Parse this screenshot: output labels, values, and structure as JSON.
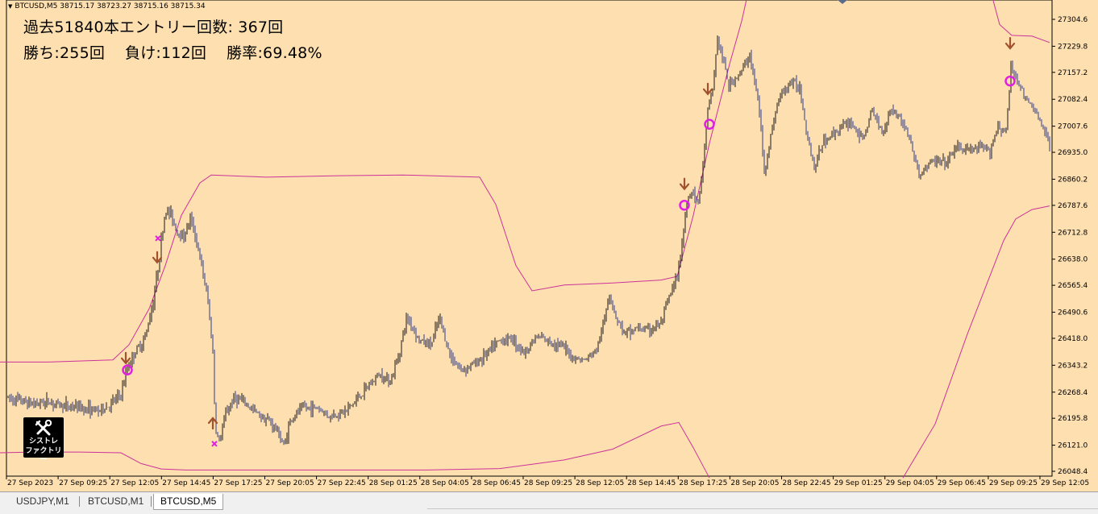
{
  "header": {
    "symbol_line": "BTCUSD,M5  38715.17 38723.27 38715.16 38715.34"
  },
  "stats": {
    "line1": "過去51840本エントリー回数: 367回",
    "line2": "勝ち:255回    負け:112回    勝率:69.48%"
  },
  "logo": {
    "line1": "シストレ",
    "line2": "ファクトリー"
  },
  "tabs": [
    {
      "label": "USDJPY,M1",
      "active": false
    },
    {
      "label": "BTCUSD,M1",
      "active": false
    },
    {
      "label": "BTCUSD,M5",
      "active": true
    }
  ],
  "chart_data": {
    "type": "candlestick",
    "symbol": "BTCUSD",
    "timeframe": "M5",
    "colors": {
      "background": "#fedfb0",
      "candle_up": "#1a1a1a",
      "candle_down": "#2d3d8a",
      "band": "#cc3399",
      "marker_circle": "#e020e0",
      "marker_cross": "#e020e0",
      "arrow": "#a0522d"
    },
    "y_ticks": [
      26048.4,
      26121.0,
      26195.8,
      26268.4,
      26343.2,
      26418.0,
      26490.6,
      26565.4,
      26638.0,
      26712.8,
      26787.6,
      26860.2,
      26935.0,
      27007.6,
      27082.4,
      27157.2,
      27229.8,
      27304.6
    ],
    "x_labels": [
      "27 Sep 2023",
      "27 Sep 09:25",
      "27 Sep 12:05",
      "27 Sep 14:45",
      "27 Sep 17:25",
      "27 Sep 20:05",
      "27 Sep 22:45",
      "28 Sep 01:25",
      "28 Sep 04:05",
      "28 Sep 06:45",
      "28 Sep 09:25",
      "28 Sep 12:05",
      "28 Sep 14:45",
      "28 Sep 17:25",
      "28 Sep 20:05",
      "28 Sep 22:45",
      "29 Sep 01:25",
      "29 Sep 04:05",
      "29 Sep 06:45",
      "29 Sep 09:25",
      "29 Sep 12:05"
    ],
    "y_range": [
      26048.4,
      27304.6
    ],
    "price_path": [
      [
        0,
        26258
      ],
      [
        20,
        26248
      ],
      [
        40,
        26236
      ],
      [
        60,
        26242
      ],
      [
        80,
        26230
      ],
      [
        100,
        26226
      ],
      [
        120,
        26216
      ],
      [
        135,
        26230
      ],
      [
        150,
        26262
      ],
      [
        158,
        26336
      ],
      [
        165,
        26370
      ],
      [
        180,
        26420
      ],
      [
        190,
        26520
      ],
      [
        197,
        26630
      ],
      [
        205,
        26772
      ],
      [
        212,
        26764
      ],
      [
        220,
        26712
      ],
      [
        228,
        26700
      ],
      [
        236,
        26752
      ],
      [
        242,
        26706
      ],
      [
        250,
        26620
      ],
      [
        258,
        26520
      ],
      [
        264,
        26380
      ],
      [
        267,
        26168
      ],
      [
        272,
        26130
      ],
      [
        280,
        26208
      ],
      [
        290,
        26252
      ],
      [
        300,
        26244
      ],
      [
        320,
        26208
      ],
      [
        335,
        26186
      ],
      [
        345,
        26158
      ],
      [
        352,
        26118
      ],
      [
        360,
        26188
      ],
      [
        375,
        26226
      ],
      [
        395,
        26224
      ],
      [
        410,
        26200
      ],
      [
        430,
        26218
      ],
      [
        450,
        26266
      ],
      [
        470,
        26318
      ],
      [
        485,
        26300
      ],
      [
        495,
        26378
      ],
      [
        505,
        26478
      ],
      [
        520,
        26412
      ],
      [
        535,
        26400
      ],
      [
        545,
        26476
      ],
      [
        558,
        26370
      ],
      [
        572,
        26330
      ],
      [
        590,
        26350
      ],
      [
        605,
        26378
      ],
      [
        620,
        26412
      ],
      [
        635,
        26418
      ],
      [
        650,
        26378
      ],
      [
        665,
        26422
      ],
      [
        680,
        26410
      ],
      [
        695,
        26400
      ],
      [
        710,
        26366
      ],
      [
        725,
        26356
      ],
      [
        740,
        26386
      ],
      [
        750,
        26470
      ],
      [
        755,
        26548
      ],
      [
        765,
        26472
      ],
      [
        775,
        26430
      ],
      [
        790,
        26446
      ],
      [
        805,
        26440
      ],
      [
        820,
        26460
      ],
      [
        830,
        26532
      ],
      [
        840,
        26588
      ],
      [
        847,
        26700
      ],
      [
        853,
        26812
      ],
      [
        860,
        26828
      ],
      [
        866,
        26792
      ],
      [
        872,
        26900
      ],
      [
        878,
        27050
      ],
      [
        884,
        27110
      ],
      [
        890,
        27250
      ],
      [
        896,
        27200
      ],
      [
        904,
        27120
      ],
      [
        912,
        27140
      ],
      [
        920,
        27160
      ],
      [
        930,
        27206
      ],
      [
        936,
        27130
      ],
      [
        942,
        27050
      ],
      [
        948,
        26880
      ],
      [
        956,
        26980
      ],
      [
        965,
        27080
      ],
      [
        980,
        27130
      ],
      [
        992,
        27116
      ],
      [
        1000,
        27000
      ],
      [
        1010,
        26890
      ],
      [
        1020,
        26960
      ],
      [
        1030,
        26980
      ],
      [
        1040,
        27000
      ],
      [
        1055,
        27020
      ],
      [
        1070,
        26970
      ],
      [
        1082,
        27050
      ],
      [
        1095,
        26990
      ],
      [
        1105,
        27060
      ],
      [
        1120,
        27020
      ],
      [
        1130,
        26960
      ],
      [
        1140,
        26868
      ],
      [
        1150,
        26900
      ],
      [
        1160,
        26910
      ],
      [
        1175,
        26905
      ],
      [
        1185,
        26950
      ],
      [
        1200,
        26940
      ],
      [
        1215,
        26946
      ],
      [
        1228,
        26940
      ],
      [
        1238,
        27010
      ],
      [
        1248,
        26990
      ],
      [
        1254,
        27170
      ],
      [
        1262,
        27140
      ],
      [
        1272,
        27080
      ],
      [
        1282,
        27060
      ],
      [
        1292,
        27010
      ],
      [
        1302,
        26950
      ]
    ],
    "bands": {
      "upper": [
        [
          0,
          26352
        ],
        [
          60,
          26352
        ],
        [
          140,
          26358
        ],
        [
          160,
          26400
        ],
        [
          185,
          26500
        ],
        [
          205,
          26620
        ],
        [
          225,
          26760
        ],
        [
          248,
          26850
        ],
        [
          262,
          26872
        ],
        [
          330,
          26866
        ],
        [
          420,
          26870
        ],
        [
          500,
          26872
        ],
        [
          595,
          26866
        ],
        [
          615,
          26790
        ],
        [
          640,
          26620
        ],
        [
          660,
          26550
        ],
        [
          700,
          26566
        ],
        [
          760,
          26572
        ],
        [
          820,
          26580
        ],
        [
          840,
          26590
        ],
        [
          860,
          26760
        ],
        [
          880,
          26960
        ],
        [
          905,
          27180
        ],
        [
          920,
          27300
        ],
        [
          929,
          27390
        ]
      ],
      "upper2": [
        [
          1228,
          27390
        ],
        [
          1240,
          27290
        ],
        [
          1255,
          27260
        ],
        [
          1280,
          27258
        ],
        [
          1302,
          27240
        ]
      ],
      "lower": [
        [
          0,
          26100
        ],
        [
          40,
          26102
        ],
        [
          100,
          26102
        ],
        [
          150,
          26100
        ],
        [
          175,
          26070
        ],
        [
          200,
          26055
        ],
        [
          230,
          26052
        ],
        [
          280,
          26052
        ],
        [
          400,
          26052
        ],
        [
          530,
          26052
        ],
        [
          620,
          26056
        ],
        [
          700,
          26080
        ],
        [
          760,
          26110
        ],
        [
          820,
          26174
        ],
        [
          842,
          26184
        ],
        [
          860,
          26114
        ],
        [
          880,
          26030
        ]
      ],
      "lower2": [
        [
          1120,
          26030
        ],
        [
          1160,
          26180
        ],
        [
          1200,
          26430
        ],
        [
          1245,
          26690
        ],
        [
          1260,
          26750
        ],
        [
          1280,
          26776
        ],
        [
          1302,
          26786
        ]
      ]
    },
    "markers": {
      "circles": [
        [
          158,
          26330
        ],
        [
          849,
          26788
        ],
        [
          880,
          27013
        ],
        [
          1253,
          27133
        ]
      ],
      "crosses": [
        [
          196,
          26696
        ],
        [
          266,
          26125
        ]
      ],
      "down_arrows": [
        [
          195,
          26640
        ],
        [
          156,
          26360
        ],
        [
          849,
          26844
        ],
        [
          878,
          27108
        ],
        [
          1253,
          27235
        ]
      ],
      "up_arrows": [
        [
          264,
          26185
        ]
      ]
    }
  }
}
